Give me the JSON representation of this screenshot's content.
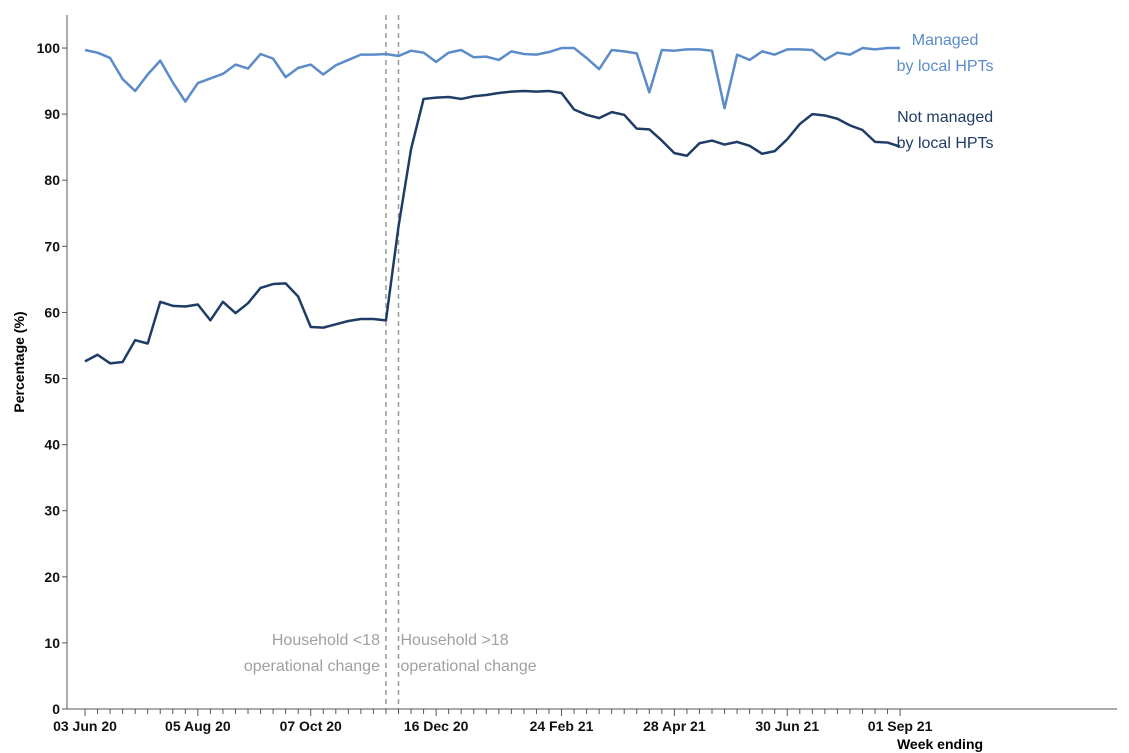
{
  "chart_data": {
    "type": "line",
    "y_label": "Percentage (%)",
    "x_label": "Week ending",
    "categories": [
      "03 Jun 20",
      null,
      null,
      null,
      null,
      null,
      null,
      null,
      null,
      "05 Aug 20",
      null,
      null,
      null,
      null,
      null,
      null,
      null,
      null,
      "07 Oct 20",
      null,
      null,
      null,
      null,
      null,
      null,
      null,
      null,
      null,
      "16 Dec 20",
      null,
      null,
      null,
      null,
      null,
      null,
      null,
      null,
      null,
      "24 Feb 21",
      null,
      null,
      null,
      null,
      null,
      null,
      null,
      null,
      "28 Apr 21",
      null,
      null,
      null,
      null,
      null,
      null,
      null,
      null,
      "30 Jun 21",
      null,
      null,
      null,
      null,
      null,
      null,
      null,
      null,
      "01 Sep 21"
    ],
    "series": [
      {
        "name": "Managed\nby local HPTs",
        "color": "#5b8bc9",
        "values": [
          99.7,
          99.3,
          98.5,
          95.3,
          93.5,
          96.0,
          98.1,
          94.8,
          91.9,
          94.7,
          95.4,
          96.1,
          97.5,
          96.9,
          99.1,
          98.4,
          95.6,
          97.0,
          97.5,
          96.0,
          97.4,
          98.2,
          99.0,
          99.0,
          99.1,
          98.8,
          99.6,
          99.3,
          97.9,
          99.3,
          99.7,
          98.6,
          98.7,
          98.2,
          99.5,
          99.1,
          99.0,
          99.4,
          100.0,
          100.0,
          98.5,
          96.8,
          99.7,
          99.5,
          99.2,
          93.3,
          99.7,
          99.6,
          99.8,
          99.8,
          99.6,
          90.9,
          99.0,
          98.2,
          99.5,
          99.0,
          99.8,
          99.8,
          99.7,
          98.2,
          99.3,
          99.0,
          100.0,
          99.8,
          100.0,
          100.0
        ]
      },
      {
        "name": "Not managed\nby local HPTs",
        "color": "#1f3c66",
        "values": [
          52.6,
          53.6,
          52.3,
          52.5,
          55.8,
          55.3,
          61.6,
          61.0,
          60.9,
          61.2,
          58.8,
          61.6,
          59.9,
          61.4,
          63.7,
          64.3,
          64.4,
          62.4,
          57.8,
          57.7,
          58.2,
          58.7,
          59.0,
          59.0,
          58.8,
          73.0,
          84.7,
          92.3,
          92.5,
          92.6,
          92.3,
          92.7,
          92.9,
          93.2,
          93.4,
          93.5,
          93.4,
          93.5,
          93.2,
          90.7,
          89.9,
          89.4,
          90.3,
          89.9,
          87.8,
          87.7,
          86.0,
          84.1,
          83.7,
          85.6,
          86.0,
          85.4,
          85.8,
          85.2,
          84.0,
          84.4,
          86.2,
          88.5,
          90.0,
          89.8,
          89.3,
          88.3,
          87.6,
          85.8,
          85.7,
          85.1
        ]
      }
    ],
    "ylim": [
      0,
      105
    ],
    "yticks": [
      0,
      10,
      20,
      30,
      40,
      50,
      60,
      70,
      80,
      90,
      100
    ],
    "grid": false,
    "annotations": [
      {
        "text": "Household <18\noperational change",
        "x": 24,
        "align": "right"
      },
      {
        "text": "Household >18\noperational change",
        "x": 25,
        "align": "left"
      }
    ]
  }
}
